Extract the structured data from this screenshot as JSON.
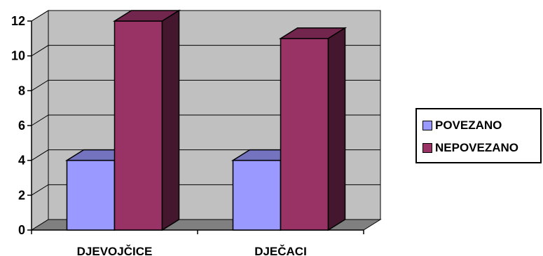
{
  "chart_data": {
    "type": "bar",
    "categories": [
      "DJEVOJČICE",
      "DJEČACI"
    ],
    "series": [
      {
        "name": "POVEZANO",
        "values": [
          4,
          4
        ],
        "color": "#9999ff"
      },
      {
        "name": "NEPOVEZANO",
        "values": [
          12,
          11
        ],
        "color": "#993366"
      }
    ],
    "ylim": [
      0,
      12
    ],
    "yticks": [
      0,
      2,
      4,
      6,
      8,
      10,
      12
    ],
    "grid": true,
    "legend_position": "right",
    "style": "3d-clustered-column",
    "colors": {
      "wall": "#c0c0c0",
      "floor": "#808080"
    }
  }
}
